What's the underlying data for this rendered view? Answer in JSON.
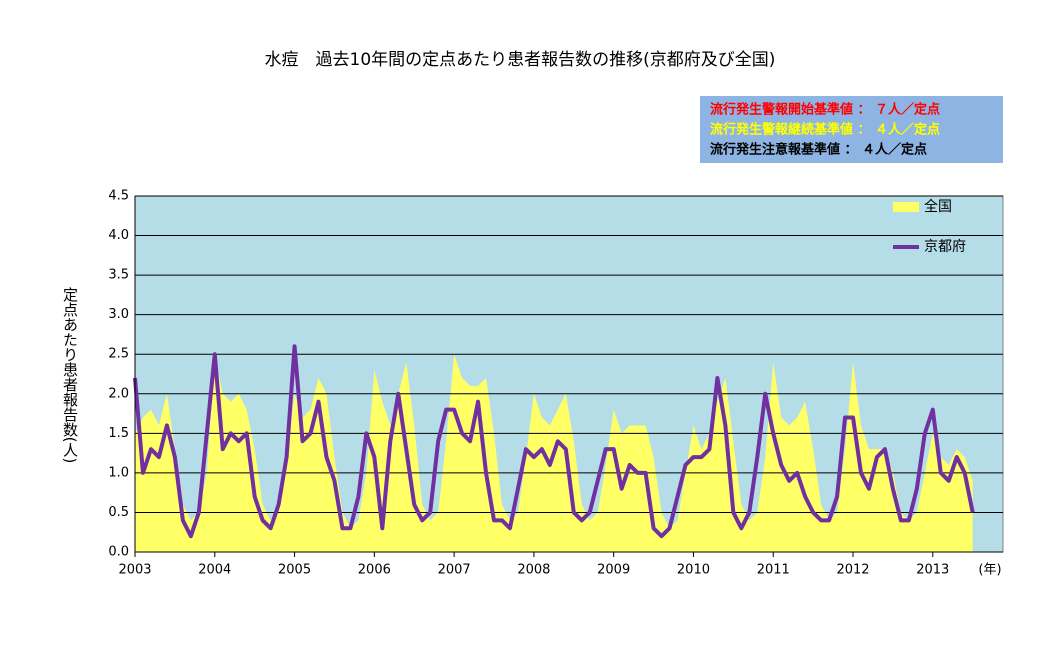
{
  "chart_data": {
    "type": "area-line",
    "title": "水痘　過去10年間の定点あたり患者報告数の推移(京都府及び全国)",
    "notes": [
      "流行発生警報開始基準値 ： ７人／定点",
      "流行発生警報継続基準値 ： ４人／定点",
      "流行発生注意報基準値 ： ４人／定点"
    ],
    "note_colors": [
      "#ff0000",
      "#ffff00",
      "#000000"
    ],
    "ylabel": "定点あたり患者報告数(人)",
    "xlabel": "(年)",
    "xlim": [
      2003,
      2013.88
    ],
    "xticks": [
      2003,
      2004,
      2005,
      2006,
      2007,
      2008,
      2009,
      2010,
      2011,
      2012,
      2013
    ],
    "ylim": [
      0,
      4.5
    ],
    "yticks": [
      {
        "value": 0,
        "label": "0.0"
      },
      {
        "value": 0.5,
        "label": "0.5"
      },
      {
        "value": 1,
        "label": "1.0"
      },
      {
        "value": 1.5,
        "label": "1.5"
      },
      {
        "value": 2,
        "label": "2.0"
      },
      {
        "value": 2.5,
        "label": "2.5"
      },
      {
        "value": 3,
        "label": "3.0"
      },
      {
        "value": 3.5,
        "label": "3.5"
      },
      {
        "value": 4,
        "label": "4.0"
      },
      {
        "value": 4.5,
        "label": "4.5"
      }
    ],
    "grid": true,
    "legend": "top-right",
    "x": [
      2003.0,
      2003.1,
      2003.2,
      2003.3,
      2003.4,
      2003.5,
      2003.6,
      2003.7,
      2003.8,
      2003.9,
      2004.0,
      2004.1,
      2004.2,
      2004.3,
      2004.4,
      2004.5,
      2004.6,
      2004.7,
      2004.8,
      2004.9,
      2005.0,
      2005.1,
      2005.2,
      2005.3,
      2005.4,
      2005.5,
      2005.6,
      2005.7,
      2005.8,
      2005.9,
      2006.0,
      2006.1,
      2006.2,
      2006.3,
      2006.4,
      2006.5,
      2006.6,
      2006.7,
      2006.8,
      2006.9,
      2007.0,
      2007.1,
      2007.2,
      2007.3,
      2007.4,
      2007.5,
      2007.6,
      2007.7,
      2007.8,
      2007.9,
      2008.0,
      2008.1,
      2008.2,
      2008.3,
      2008.4,
      2008.5,
      2008.6,
      2008.7,
      2008.8,
      2008.9,
      2009.0,
      2009.1,
      2009.2,
      2009.3,
      2009.4,
      2009.5,
      2009.6,
      2009.7,
      2009.8,
      2009.9,
      2010.0,
      2010.1,
      2010.2,
      2010.3,
      2010.4,
      2010.5,
      2010.6,
      2010.7,
      2010.8,
      2010.9,
      2011.0,
      2011.1,
      2011.2,
      2011.3,
      2011.4,
      2011.5,
      2011.6,
      2011.7,
      2011.8,
      2011.9,
      2012.0,
      2012.1,
      2012.2,
      2012.3,
      2012.4,
      2012.5,
      2012.6,
      2012.7,
      2012.8,
      2012.9,
      2013.0,
      2013.1,
      2013.2,
      2013.3,
      2013.4,
      2013.5
    ],
    "series": [
      {
        "name": "全国",
        "color": "#ffff66",
        "kind": "area",
        "values": [
          1.5,
          1.7,
          1.8,
          1.6,
          2.0,
          1.3,
          0.6,
          0.4,
          0.5,
          1.0,
          2.5,
          2.0,
          1.9,
          2.0,
          1.8,
          1.3,
          0.6,
          0.4,
          0.5,
          1.2,
          2.0,
          1.7,
          1.8,
          2.2,
          2.0,
          1.2,
          0.5,
          0.3,
          0.4,
          1.0,
          2.3,
          1.9,
          1.6,
          2.0,
          2.4,
          1.6,
          0.6,
          0.4,
          0.5,
          1.4,
          2.5,
          2.2,
          2.1,
          2.1,
          2.2,
          1.5,
          0.6,
          0.4,
          0.5,
          1.2,
          2.0,
          1.7,
          1.6,
          1.8,
          2.0,
          1.4,
          0.6,
          0.4,
          0.5,
          1.1,
          1.8,
          1.5,
          1.6,
          1.6,
          1.6,
          1.2,
          0.5,
          0.3,
          0.4,
          1.0,
          1.6,
          1.3,
          1.5,
          1.9,
          2.2,
          1.4,
          0.6,
          0.4,
          0.5,
          1.2,
          2.4,
          1.7,
          1.6,
          1.7,
          1.9,
          1.3,
          0.6,
          0.4,
          0.5,
          1.3,
          2.4,
          1.6,
          1.3,
          1.3,
          1.3,
          1.0,
          0.5,
          0.4,
          0.5,
          1.0,
          1.5,
          1.2,
          1.1,
          1.3,
          1.2,
          0.9
        ]
      },
      {
        "name": "京都府",
        "color": "#7030a0",
        "kind": "line",
        "values": [
          2.2,
          1.0,
          1.3,
          1.2,
          1.6,
          1.2,
          0.4,
          0.2,
          0.5,
          1.5,
          2.5,
          1.3,
          1.5,
          1.4,
          1.5,
          0.7,
          0.4,
          0.3,
          0.6,
          1.2,
          2.6,
          1.4,
          1.5,
          1.9,
          1.2,
          0.9,
          0.3,
          0.3,
          0.7,
          1.5,
          1.2,
          0.3,
          1.4,
          2.0,
          1.3,
          0.6,
          0.4,
          0.5,
          1.4,
          1.8,
          1.8,
          1.5,
          1.4,
          1.9,
          1.0,
          0.4,
          0.4,
          0.3,
          0.8,
          1.3,
          1.2,
          1.3,
          1.1,
          1.4,
          1.3,
          0.5,
          0.4,
          0.5,
          0.9,
          1.3,
          1.3,
          0.8,
          1.1,
          1.0,
          1.0,
          0.3,
          0.2,
          0.3,
          0.7,
          1.1,
          1.2,
          1.2,
          1.3,
          2.2,
          1.6,
          0.5,
          0.3,
          0.5,
          1.2,
          2.0,
          1.5,
          1.1,
          0.9,
          1.0,
          0.7,
          0.5,
          0.4,
          0.4,
          0.7,
          1.7,
          1.7,
          1.0,
          0.8,
          1.2,
          1.3,
          0.8,
          0.4,
          0.4,
          0.8,
          1.5,
          1.8,
          1.0,
          0.9,
          1.2,
          1.0,
          0.5
        ]
      }
    ]
  }
}
